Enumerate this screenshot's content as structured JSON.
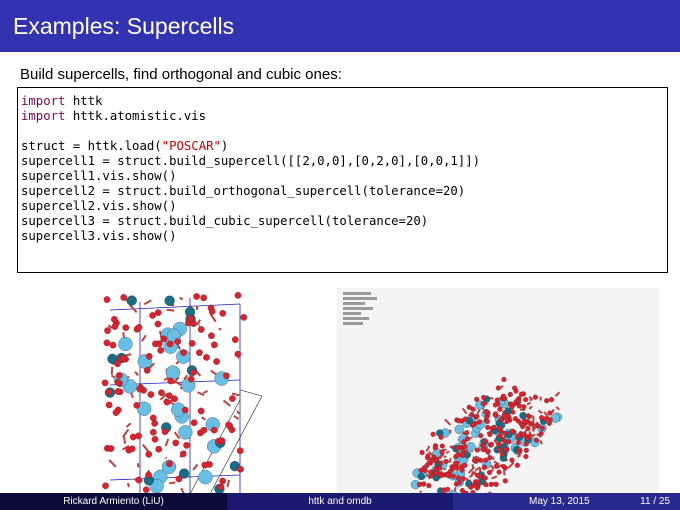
{
  "slide": {
    "title": "Examples: Supercells",
    "subtitle": "Build supercells, find orthogonal and cubic ones:"
  },
  "code": {
    "kw_import": "import",
    "l1_rest": " httk",
    "l2_rest": " httk.atomistic.vis",
    "l4_a": "struct = httk.load(",
    "l4_str": "\"POSCAR\"",
    "l4_b": ")",
    "l5": "supercell1 = struct.build_supercell([[2,0,0],[0,2,0],[0,0,1]])",
    "l6": "supercell1.vis.show()",
    "l7": "supercell2 = struct.build_orthogonal_supercell(tolerance=20)",
    "l8": "supercell2.vis.show()",
    "l9": "supercell3 = struct.build_cubic_supercell(tolerance=20)",
    "l10": "supercell3.vis.show()"
  },
  "footer": {
    "author": "Rickard Armiento  (LiU)",
    "talk": "httk and omdb",
    "date": "May 13, 2015",
    "page": "11 / 25"
  },
  "colors": {
    "titlebar": "#3333b2",
    "oxygen": "#e0202a",
    "light_atom": "#68bfe6",
    "dark_atom": "#166f86",
    "bond_line": "#2020c0"
  },
  "figures": {
    "left": "crystal-structure-supercell-render",
    "right": "crystal-structure-cubic-supercell-render"
  }
}
